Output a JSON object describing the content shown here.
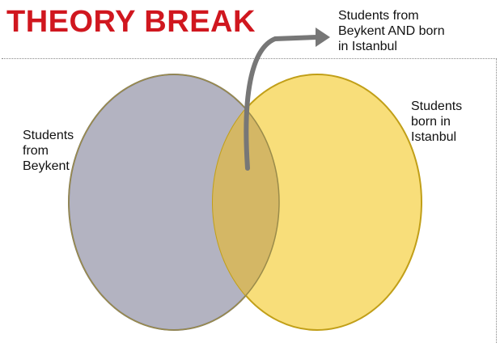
{
  "slide": {
    "title": "THEORY BREAK",
    "colors": {
      "title": "#d0171f",
      "set_a_fill": "#b3b3c1",
      "set_a_stroke": "#75757f",
      "set_b_fill": "#f8de7a",
      "set_b_stroke": "#c19f18",
      "intersection_fill": "#d4b765",
      "arrow": "#777777"
    }
  },
  "venn": {
    "set_a_label": "Students\nfrom\nBeykent",
    "set_b_label": "Students\nborn in\nIstanbul",
    "intersection_label": "Students from\nBeykent AND born\nin  Istanbul",
    "intersection_arrow": "arrow-pointer"
  }
}
